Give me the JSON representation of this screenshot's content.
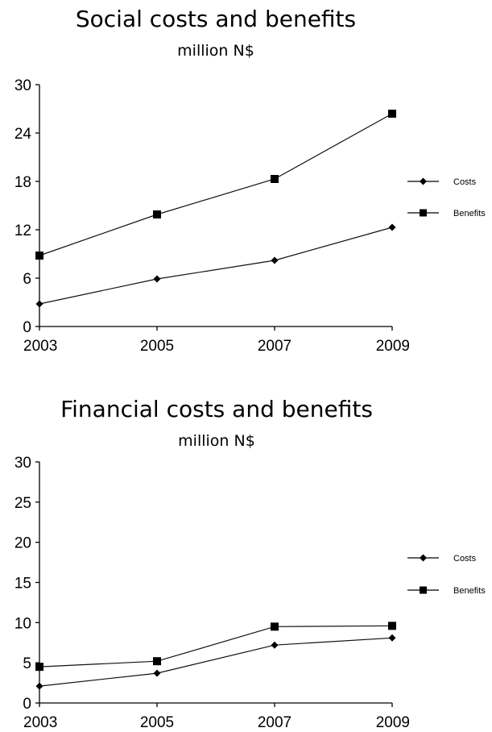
{
  "chart_data": [
    {
      "type": "line",
      "title": "Social costs and benefits",
      "subtitle": "million N$",
      "x": [
        "2003",
        "2005",
        "2007",
        "2009"
      ],
      "ylim": [
        0,
        30
      ],
      "yticks": [
        "0",
        "6",
        "12",
        "18",
        "24",
        "30"
      ],
      "legend_position": "right",
      "series": [
        {
          "name": "Costs",
          "marker": "diamond",
          "values": [
            2.8,
            5.9,
            8.2,
            12.3
          ]
        },
        {
          "name": "Benefits",
          "marker": "square",
          "values": [
            8.8,
            13.9,
            18.3,
            26.4
          ]
        }
      ]
    },
    {
      "type": "line",
      "title": "Financial costs and benefits",
      "subtitle": "million N$",
      "x": [
        "2003",
        "2005",
        "2007",
        "2009"
      ],
      "ylim": [
        0,
        30
      ],
      "yticks": [
        "0",
        "5",
        "10",
        "15",
        "20",
        "25",
        "30"
      ],
      "legend_position": "right",
      "series": [
        {
          "name": "Costs",
          "marker": "diamond",
          "values": [
            2.1,
            3.7,
            7.2,
            8.1
          ]
        },
        {
          "name": "Benefits",
          "marker": "square",
          "values": [
            4.5,
            5.2,
            9.5,
            9.6
          ]
        }
      ]
    }
  ]
}
